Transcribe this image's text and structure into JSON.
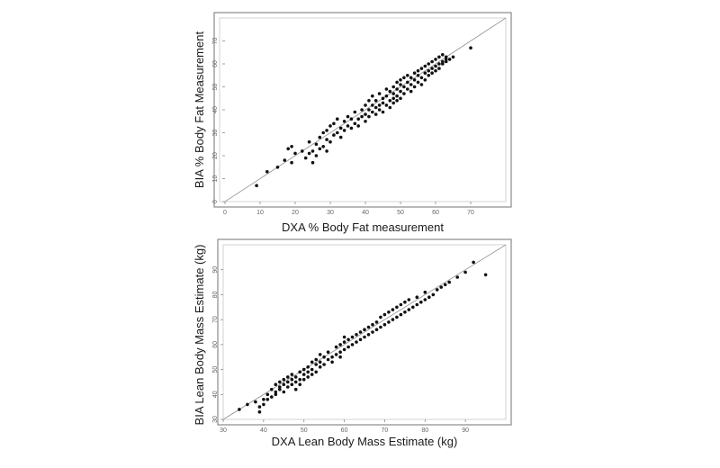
{
  "chart_data": [
    {
      "type": "scatter",
      "title": "",
      "xlabel": "DXA % Body Fat measurement",
      "ylabel": "BIA % Body Fat Measurement",
      "xlim": [
        0,
        80
      ],
      "ylim": [
        0,
        80
      ],
      "xticks": [
        "0",
        "10",
        "20",
        "30",
        "40",
        "50",
        "60",
        "70"
      ],
      "yticks": [
        "0",
        "10",
        "20",
        "30",
        "40",
        "50",
        "60",
        "70"
      ],
      "reference_line": "identity",
      "grid": false,
      "series": [
        {
          "points": [
            [
              9,
              7
            ],
            [
              12,
              13
            ],
            [
              15,
              15
            ],
            [
              17,
              18
            ],
            [
              18,
              23
            ],
            [
              19,
              24
            ],
            [
              19,
              17
            ],
            [
              20,
              21
            ],
            [
              22,
              22
            ],
            [
              23,
              19
            ],
            [
              24,
              21
            ],
            [
              24,
              26
            ],
            [
              25,
              17
            ],
            [
              25,
              22
            ],
            [
              26,
              20
            ],
            [
              26,
              25
            ],
            [
              27,
              23
            ],
            [
              27,
              28
            ],
            [
              28,
              24
            ],
            [
              28,
              30
            ],
            [
              29,
              27
            ],
            [
              29,
              31
            ],
            [
              29,
              22
            ],
            [
              30,
              33
            ],
            [
              30,
              26
            ],
            [
              31,
              29
            ],
            [
              31,
              34
            ],
            [
              32,
              30
            ],
            [
              32,
              36
            ],
            [
              33,
              28
            ],
            [
              33,
              32
            ],
            [
              34,
              35
            ],
            [
              34,
              31
            ],
            [
              35,
              33
            ],
            [
              35,
              37
            ],
            [
              36,
              32
            ],
            [
              36,
              36
            ],
            [
              37,
              34
            ],
            [
              37,
              39
            ],
            [
              38,
              36
            ],
            [
              38,
              33
            ],
            [
              39,
              40
            ],
            [
              39,
              37
            ],
            [
              40,
              38
            ],
            [
              40,
              42
            ],
            [
              40,
              35
            ],
            [
              41,
              44
            ],
            [
              41,
              40
            ],
            [
              41,
              37
            ],
            [
              42,
              42
            ],
            [
              42,
              46
            ],
            [
              42,
              39
            ],
            [
              43,
              41
            ],
            [
              43,
              44
            ],
            [
              43,
              38
            ],
            [
              44,
              42
            ],
            [
              44,
              47
            ],
            [
              44,
              40
            ],
            [
              45,
              43
            ],
            [
              45,
              45
            ],
            [
              45,
              39
            ],
            [
              46,
              46
            ],
            [
              46,
              42
            ],
            [
              46,
              49
            ],
            [
              47,
              44
            ],
            [
              47,
              48
            ],
            [
              47,
              41
            ],
            [
              48,
              47
            ],
            [
              48,
              50
            ],
            [
              48,
              43
            ],
            [
              48,
              45
            ],
            [
              49,
              49
            ],
            [
              49,
              52
            ],
            [
              49,
              46
            ],
            [
              49,
              44
            ],
            [
              50,
              48
            ],
            [
              50,
              51
            ],
            [
              50,
              45
            ],
            [
              50,
              53
            ],
            [
              51,
              50
            ],
            [
              51,
              54
            ],
            [
              51,
              47
            ],
            [
              52,
              52
            ],
            [
              52,
              49
            ],
            [
              52,
              55
            ],
            [
              53,
              51
            ],
            [
              53,
              54
            ],
            [
              53,
              48
            ],
            [
              54,
              53
            ],
            [
              54,
              56
            ],
            [
              54,
              50
            ],
            [
              55,
              55
            ],
            [
              55,
              52
            ],
            [
              55,
              57
            ],
            [
              56,
              54
            ],
            [
              56,
              58
            ],
            [
              56,
              51
            ],
            [
              57,
              56
            ],
            [
              57,
              53
            ],
            [
              57,
              59
            ],
            [
              58,
              57
            ],
            [
              58,
              55
            ],
            [
              58,
              60
            ],
            [
              59,
              58
            ],
            [
              59,
              56
            ],
            [
              59,
              61
            ],
            [
              60,
              59
            ],
            [
              60,
              57
            ],
            [
              60,
              62
            ],
            [
              61,
              60
            ],
            [
              61,
              63
            ],
            [
              61,
              58
            ],
            [
              62,
              61
            ],
            [
              62,
              64
            ],
            [
              62,
              60
            ],
            [
              63,
              62
            ],
            [
              63,
              63
            ],
            [
              63,
              61
            ],
            [
              64,
              62
            ],
            [
              65,
              63
            ],
            [
              70,
              67
            ]
          ]
        }
      ]
    },
    {
      "type": "scatter",
      "title": "",
      "xlabel": "DXA Lean Body Mass Estimate (kg)",
      "ylabel": "BIA Lean Body Mass Estimate (kg)",
      "xlim": [
        30,
        100
      ],
      "ylim": [
        30,
        100
      ],
      "xticks": [
        "30",
        "40",
        "50",
        "60",
        "70",
        "80",
        "90"
      ],
      "yticks": [
        "30",
        "40",
        "50",
        "60",
        "70",
        "80",
        "90"
      ],
      "reference_line": "identity",
      "grid": false,
      "series": [
        {
          "points": [
            [
              34,
              34
            ],
            [
              36,
              36
            ],
            [
              38,
              37
            ],
            [
              39,
              33
            ],
            [
              39,
              35
            ],
            [
              40,
              38
            ],
            [
              40,
              36
            ],
            [
              41,
              40
            ],
            [
              41,
              38
            ],
            [
              42,
              39
            ],
            [
              42,
              42
            ],
            [
              43,
              41
            ],
            [
              43,
              44
            ],
            [
              43,
              40
            ],
            [
              44,
              42
            ],
            [
              44,
              45
            ],
            [
              44,
              43
            ],
            [
              45,
              44
            ],
            [
              45,
              41
            ],
            [
              45,
              46
            ],
            [
              46,
              43
            ],
            [
              46,
              45
            ],
            [
              46,
              47
            ],
            [
              47,
              44
            ],
            [
              47,
              46
            ],
            [
              47,
              48
            ],
            [
              48,
              42
            ],
            [
              48,
              45
            ],
            [
              48,
              47
            ],
            [
              49,
              46
            ],
            [
              49,
              49
            ],
            [
              49,
              44
            ],
            [
              50,
              48
            ],
            [
              50,
              50
            ],
            [
              50,
              46
            ],
            [
              51,
              47
            ],
            [
              51,
              49
            ],
            [
              51,
              51
            ],
            [
              52,
              48
            ],
            [
              52,
              50
            ],
            [
              52,
              53
            ],
            [
              53,
              49
            ],
            [
              53,
              52
            ],
            [
              53,
              54
            ],
            [
              54,
              51
            ],
            [
              54,
              53
            ],
            [
              54,
              56
            ],
            [
              55,
              52
            ],
            [
              55,
              55
            ],
            [
              56,
              54
            ],
            [
              56,
              57
            ],
            [
              57,
              55
            ],
            [
              57,
              53
            ],
            [
              58,
              56
            ],
            [
              58,
              59
            ],
            [
              59,
              57
            ],
            [
              59,
              60
            ],
            [
              59,
              55
            ],
            [
              60,
              58
            ],
            [
              60,
              61
            ],
            [
              60,
              63
            ],
            [
              61,
              59
            ],
            [
              61,
              62
            ],
            [
              62,
              60
            ],
            [
              62,
              63
            ],
            [
              63,
              61
            ],
            [
              63,
              64
            ],
            [
              64,
              62
            ],
            [
              64,
              65
            ],
            [
              65,
              63
            ],
            [
              65,
              66
            ],
            [
              66,
              64
            ],
            [
              66,
              67
            ],
            [
              67,
              65
            ],
            [
              67,
              68
            ],
            [
              68,
              66
            ],
            [
              68,
              69
            ],
            [
              69,
              67
            ],
            [
              69,
              71
            ],
            [
              70,
              68
            ],
            [
              70,
              72
            ],
            [
              71,
              69
            ],
            [
              71,
              73
            ],
            [
              72,
              70
            ],
            [
              72,
              74
            ],
            [
              73,
              71
            ],
            [
              73,
              75
            ],
            [
              74,
              72
            ],
            [
              74,
              76
            ],
            [
              75,
              73
            ],
            [
              75,
              77
            ],
            [
              76,
              74
            ],
            [
              76,
              78
            ],
            [
              77,
              75
            ],
            [
              78,
              76
            ],
            [
              78,
              79
            ],
            [
              79,
              77
            ],
            [
              80,
              78
            ],
            [
              80,
              81
            ],
            [
              81,
              79
            ],
            [
              82,
              80
            ],
            [
              83,
              82
            ],
            [
              84,
              83
            ],
            [
              85,
              84
            ],
            [
              86,
              85
            ],
            [
              88,
              87
            ],
            [
              90,
              89
            ],
            [
              92,
              93
            ],
            [
              95,
              88
            ]
          ]
        }
      ]
    }
  ]
}
